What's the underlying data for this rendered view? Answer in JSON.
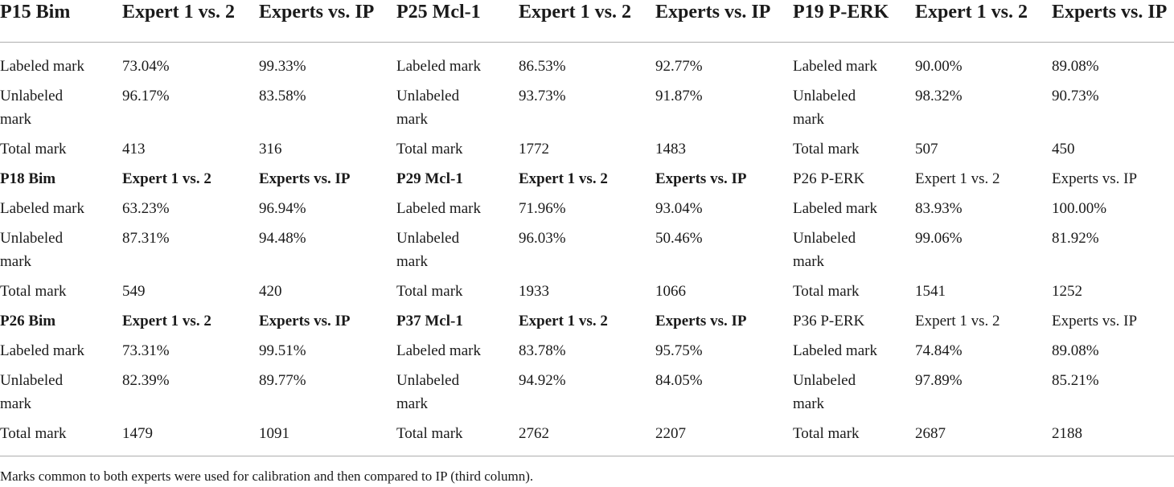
{
  "headers": [
    "P15 Bim",
    "Expert 1 vs. 2",
    "Experts vs. IP",
    "P25 Mcl-1",
    "Expert 1 vs. 2",
    "Experts vs. IP",
    "P19 P-ERK",
    "Expert 1 vs. 2",
    "Experts vs. IP"
  ],
  "blocks": [
    {
      "rows": [
        [
          "Labeled mark",
          "73.04%",
          "99.33%",
          "Labeled mark",
          "86.53%",
          "92.77%",
          "Labeled mark",
          "90.00%",
          "89.08%"
        ],
        [
          "Unlabeled mark",
          "96.17%",
          "83.58%",
          "Unlabeled mark",
          "93.73%",
          "91.87%",
          "Unlabeled mark",
          "98.32%",
          "90.73%"
        ],
        [
          "Total mark",
          "413",
          "316",
          "Total mark",
          "1772",
          "1483",
          "Total mark",
          "507",
          "450"
        ]
      ]
    },
    {
      "sub_header": [
        "P18 Bim",
        "Expert 1 vs. 2",
        "Experts vs. IP",
        "P29 Mcl-1",
        "Expert 1 vs. 2",
        "Experts vs. IP",
        "P26 P-ERK",
        "Expert 1 vs. 2",
        "Experts vs. IP"
      ],
      "rows": [
        [
          "Labeled mark",
          "63.23%",
          "96.94%",
          "Labeled mark",
          "71.96%",
          "93.04%",
          "Labeled mark",
          "83.93%",
          "100.00%"
        ],
        [
          "Unlabeled mark",
          "87.31%",
          "94.48%",
          "Unlabeled mark",
          "96.03%",
          "50.46%",
          "Unlabeled mark",
          "99.06%",
          "81.92%"
        ],
        [
          "Total mark",
          "549",
          "420",
          "Total mark",
          "1933",
          "1066",
          "Total mark",
          "1541",
          "1252"
        ]
      ]
    },
    {
      "sub_header": [
        "P26 Bim",
        "Expert 1 vs. 2",
        "Experts vs. IP",
        "P37 Mcl-1",
        "Expert 1 vs. 2",
        "Experts vs. IP",
        "P36 P-ERK",
        "Expert 1 vs. 2",
        "Experts vs. IP"
      ],
      "rows": [
        [
          "Labeled mark",
          "73.31%",
          "99.51%",
          "Labeled mark",
          "83.78%",
          "95.75%",
          "Labeled mark",
          "74.84%",
          "89.08%"
        ],
        [
          "Unlabeled mark",
          "82.39%",
          "89.77%",
          "Unlabeled mark",
          "94.92%",
          "84.05%",
          "Unlabeled mark",
          "97.89%",
          "85.21%"
        ],
        [
          "Total mark",
          "1479",
          "1091",
          "Total mark",
          "2762",
          "2207",
          "Total mark",
          "2687",
          "2188"
        ]
      ]
    }
  ],
  "footnote": "Marks common to both experts were used for calibration and then compared to IP (third column)."
}
